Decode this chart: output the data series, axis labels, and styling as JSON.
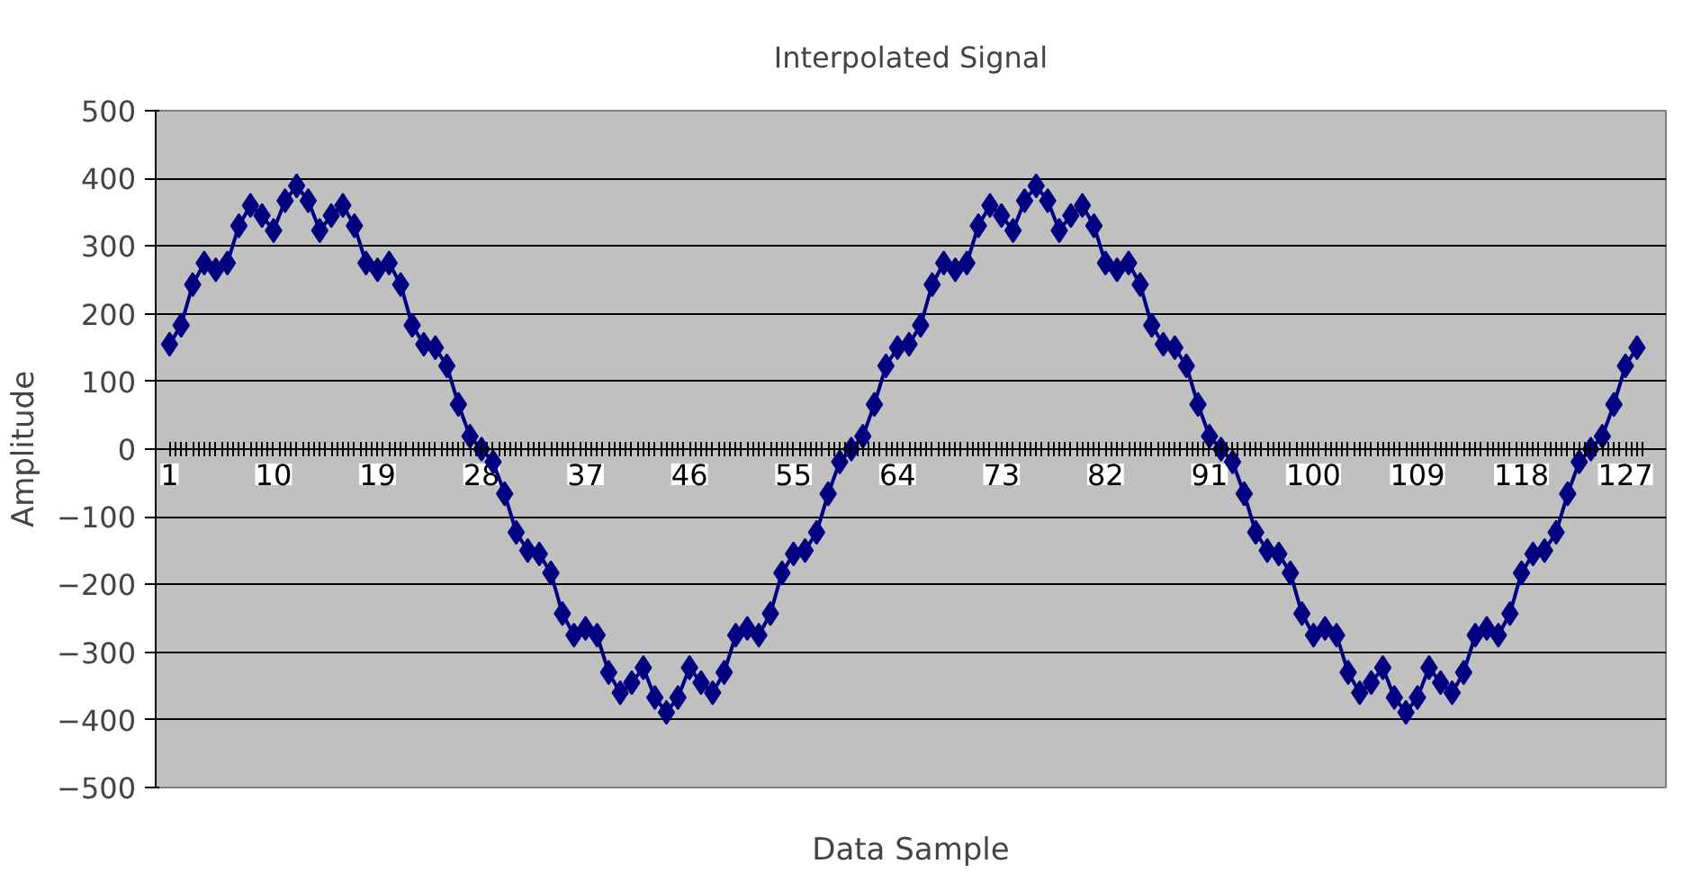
{
  "chart_data": {
    "type": "line",
    "title": "Interpolated Signal",
    "xlabel": "Data Sample",
    "ylabel": "Amplitude",
    "categories": [
      "1",
      null,
      null,
      null,
      null,
      null,
      null,
      null,
      null,
      "10",
      null,
      null,
      null,
      null,
      null,
      null,
      null,
      null,
      "19",
      null,
      null,
      null,
      null,
      null,
      null,
      null,
      null,
      "28",
      null,
      null,
      null,
      null,
      null,
      null,
      null,
      null,
      "37",
      null,
      null,
      null,
      null,
      null,
      null,
      null,
      null,
      "46",
      null,
      null,
      null,
      null,
      null,
      null,
      null,
      null,
      "55",
      null,
      null,
      null,
      null,
      null,
      null,
      null,
      null,
      "64",
      null,
      null,
      null,
      null,
      null,
      null,
      null,
      null,
      "73",
      null,
      null,
      null,
      null,
      null,
      null,
      null,
      null,
      "82",
      null,
      null,
      null,
      null,
      null,
      null,
      null,
      null,
      "91",
      null,
      null,
      null,
      null,
      null,
      null,
      null,
      null,
      "100",
      null,
      null,
      null,
      null,
      null,
      null,
      null,
      null,
      "109",
      null,
      null,
      null,
      null,
      null,
      null,
      null,
      null,
      "118",
      null,
      null,
      null,
      null,
      null,
      null,
      null,
      null,
      "127",
      null
    ],
    "series": [
      {
        "color": "#000080",
        "values": [
          155,
          183,
          243,
          275,
          265,
          275,
          330,
          360,
          345,
          323,
          367,
          389,
          367,
          323,
          345,
          360,
          330,
          275,
          265,
          275,
          243,
          183,
          155,
          150,
          123,
          66,
          19,
          0,
          -19,
          -66,
          -123,
          -150,
          -155,
          -183,
          -243,
          -275,
          -265,
          -275,
          -330,
          -360,
          -345,
          -323,
          -367,
          -389,
          -367,
          -323,
          -345,
          -360,
          -330,
          -275,
          -265,
          -275,
          -243,
          -183,
          -155,
          -150,
          -123,
          -66,
          -19,
          0,
          19,
          66,
          123,
          150,
          155,
          183,
          243,
          275,
          265,
          275,
          330,
          360,
          345,
          323,
          367,
          389,
          367,
          323,
          345,
          360,
          330,
          275,
          265,
          275,
          243,
          183,
          155,
          150,
          123,
          66,
          19,
          0,
          -19,
          -66,
          -123,
          -150,
          -155,
          -183,
          -243,
          -275,
          -265,
          -275,
          -330,
          -360,
          -345,
          -323,
          -367,
          -389,
          -367,
          -323,
          -345,
          -360,
          -330,
          -275,
          -265,
          -275,
          -243,
          -183,
          -155,
          -150,
          -123,
          -66,
          -19,
          0,
          19,
          66,
          123,
          150
        ]
      }
    ],
    "ylim": [
      -500,
      500
    ],
    "yticks": [
      -500,
      -400,
      -300,
      -200,
      -100,
      0,
      100,
      200,
      300,
      400,
      500
    ],
    "grid": "y",
    "marker": "diamond",
    "line_style": "solid"
  }
}
